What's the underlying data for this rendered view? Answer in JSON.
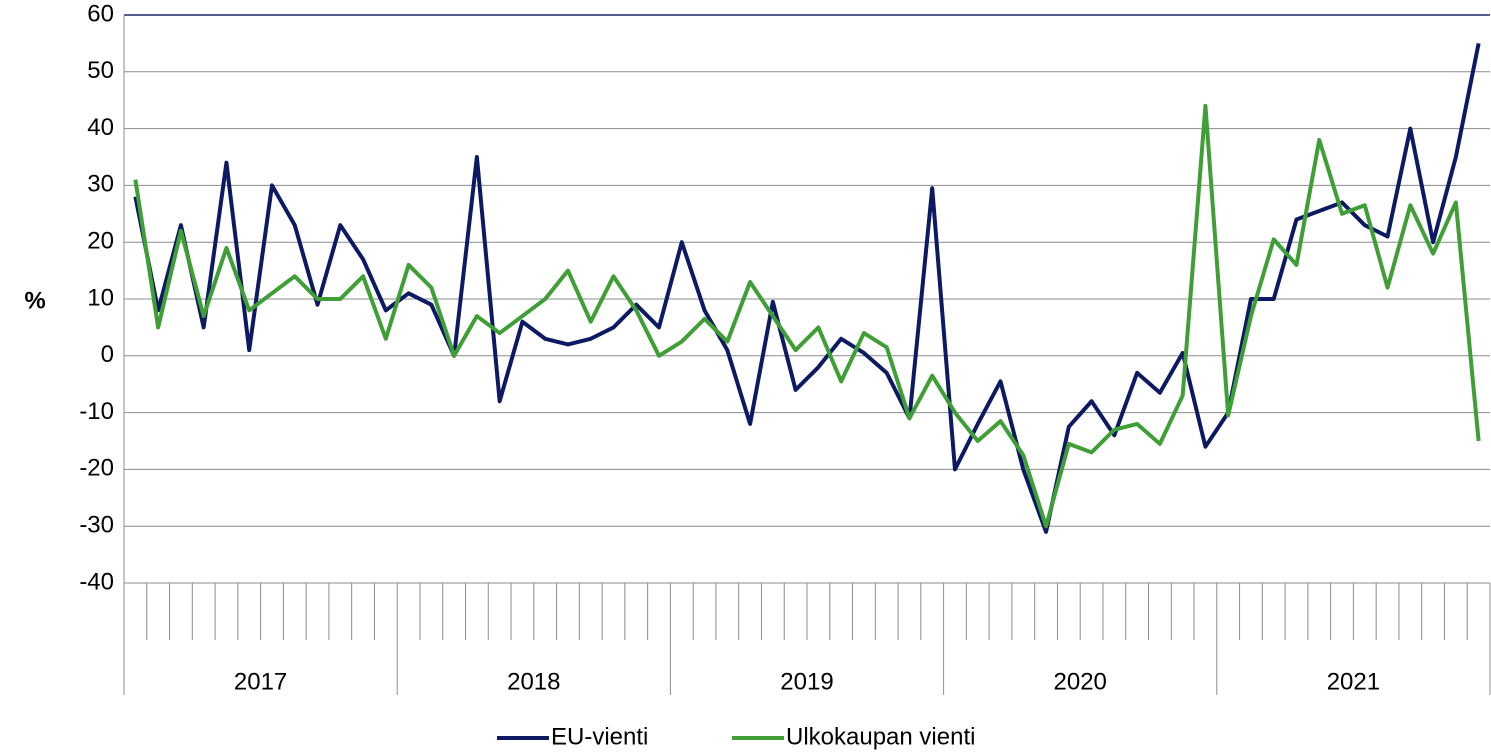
{
  "chart_data": {
    "type": "line",
    "y_label": "%",
    "categories": [
      null,
      null,
      null,
      null,
      null,
      null,
      null,
      null,
      null,
      null,
      null,
      null,
      null,
      null,
      null,
      null,
      null,
      null,
      null,
      null,
      null,
      null,
      null,
      null,
      null,
      null,
      null,
      null,
      null,
      null,
      null,
      null,
      null,
      null,
      null,
      null,
      null,
      null,
      null,
      null,
      null,
      null,
      null,
      null,
      null,
      null,
      null,
      null,
      null,
      null,
      null,
      null,
      null,
      null,
      null,
      null,
      null,
      null,
      null,
      null
    ],
    "year_groups": [
      "2017",
      "2018",
      "2019",
      "2020",
      "2021"
    ],
    "series": [
      {
        "name": "EU-vienti",
        "color": "#0d1a63",
        "values": [
          28,
          8,
          23,
          5,
          34,
          1,
          30,
          23,
          9,
          23,
          17,
          8,
          11,
          9,
          0,
          35,
          -8,
          6,
          3,
          2,
          3,
          5,
          9,
          5,
          20,
          8,
          1,
          -12,
          9.5,
          -6,
          -2,
          3,
          0.5,
          -3,
          -11,
          29.5,
          -20,
          -12,
          -4.5,
          -20,
          -31,
          -12.5,
          -8,
          -14,
          -3,
          -6.5,
          0.5,
          -16,
          -10,
          10,
          10,
          24,
          25.5,
          27,
          23,
          21,
          40,
          20,
          35,
          55
        ]
      },
      {
        "name": "Ulkokaupan vienti",
        "color": "#3f9e35",
        "values": [
          31,
          5,
          22,
          7,
          19,
          8,
          11,
          14,
          10,
          10,
          14,
          3,
          16,
          12,
          0,
          7,
          4,
          7,
          10,
          15,
          6,
          14,
          8,
          0,
          2.5,
          6.5,
          2.5,
          13,
          7,
          1,
          5,
          -4.5,
          4,
          1.5,
          -11,
          -3.5,
          -10,
          -15,
          -11.5,
          -17.5,
          -30,
          -15.5,
          -17,
          -13,
          -12,
          -15.5,
          -7,
          44,
          -10.5,
          7,
          20.5,
          16,
          38,
          25,
          26.5,
          12,
          26.5,
          18,
          27,
          -15
        ]
      }
    ],
    "ylim": [
      -40,
      60
    ],
    "yticks": [
      -40,
      -30,
      -20,
      -10,
      0,
      10,
      20,
      30,
      40,
      50,
      60
    ],
    "grid": true,
    "legend": "bottom"
  }
}
